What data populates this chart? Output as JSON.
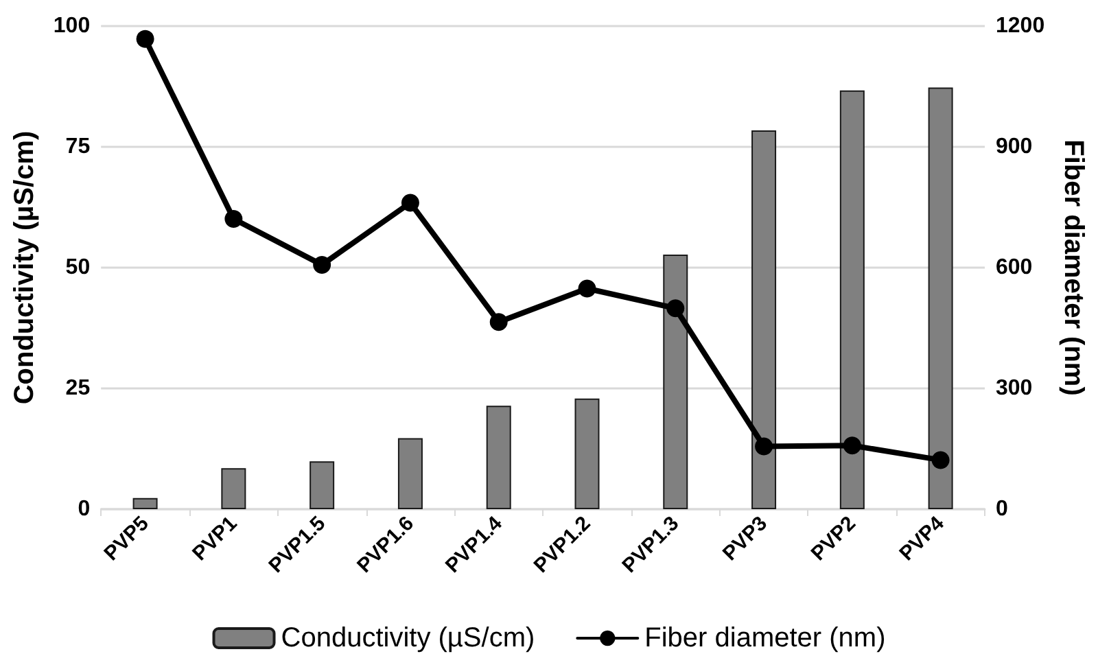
{
  "chart_data": {
    "type": "bar",
    "ylabel": "Conductivity (µS/cm)",
    "y2label": "Fiber diameter (nm)",
    "categories": [
      "PVP5",
      "PVP1",
      "PVP1.5",
      "PVP1.6",
      "PVP1.4",
      "PVP1.2",
      "PVP1.3",
      "PVP3",
      "PVP2",
      "PVP4"
    ],
    "series": [
      {
        "name": "Conductivity (µS/cm)",
        "color": "#808080",
        "values": [
          2.3,
          8.5,
          9.9,
          14.7,
          21.4,
          22.9,
          52.7,
          78.4,
          86.7,
          87.3
        ]
      },
      {
        "name": "Fiber diameter (nm)",
        "type": "line",
        "axis": "y2",
        "color": "#000000",
        "values": [
          1168,
          721,
          607,
          761,
          465,
          548,
          499,
          156,
          158,
          122
        ]
      }
    ],
    "ylim": [
      0,
      100
    ],
    "yticks": [
      0,
      25,
      50,
      75,
      100
    ],
    "y2lim": [
      0,
      1200
    ],
    "y2ticks": [
      0,
      300,
      600,
      900,
      1200
    ],
    "grid": "y",
    "legend": "bottom",
    "marker": "circle",
    "line_style": "solid"
  }
}
